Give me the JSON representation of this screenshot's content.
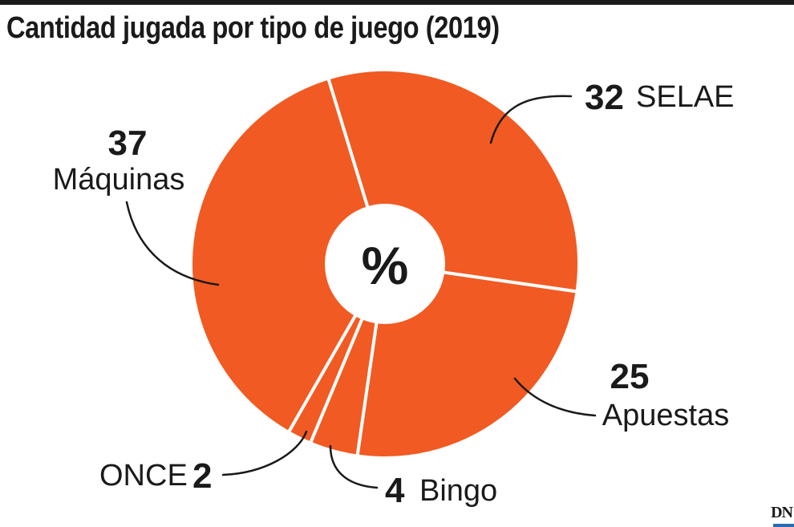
{
  "title": "Cantidad jugada por tipo de juego (2019)",
  "center_label": "%",
  "logo": "DN",
  "colors": {
    "slice": "#f15a22",
    "separator": "#ffffff",
    "text": "#1a1a1a",
    "logo_accent": "#2a6bb0"
  },
  "chart_data": {
    "type": "pie",
    "unit": "%",
    "slices": [
      {
        "label": "SELAE",
        "value": 32
      },
      {
        "label": "Apuestas",
        "value": 25
      },
      {
        "label": "Bingo",
        "value": 4
      },
      {
        "label": "ONCE",
        "value": 2
      },
      {
        "label": "Máquinas",
        "value": 37
      }
    ]
  }
}
